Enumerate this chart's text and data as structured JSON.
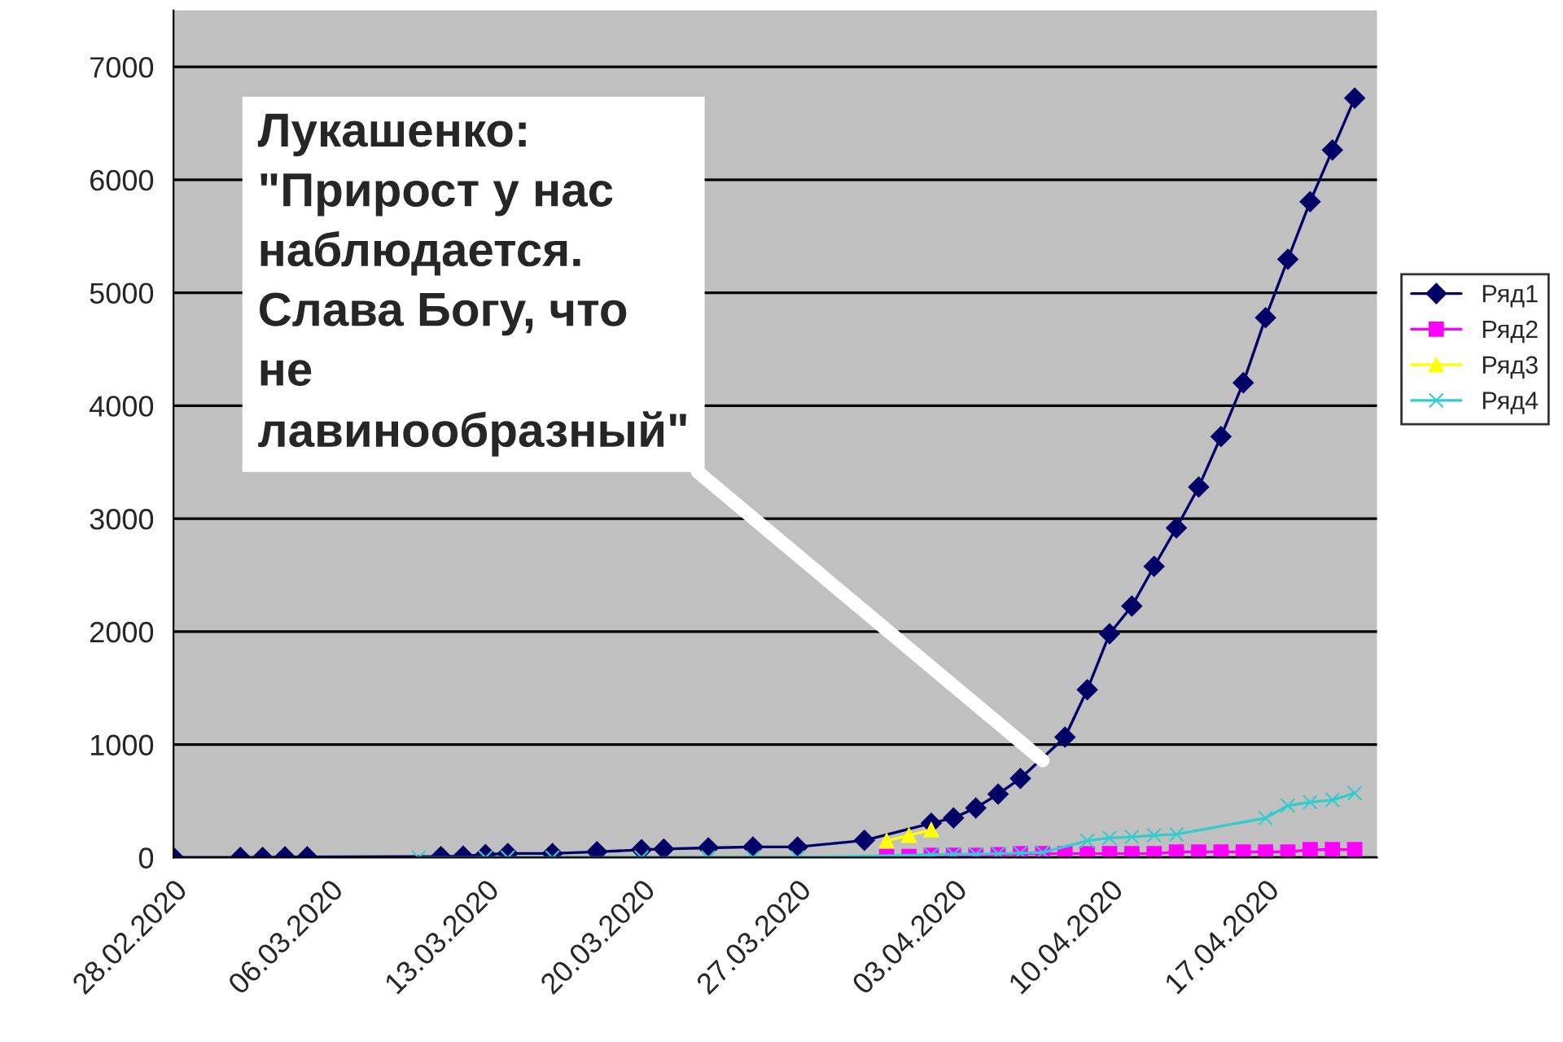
{
  "chart_data": {
    "type": "line",
    "annotations": [
      {
        "text": "Лукашенко:\n\"Прирост у нас\nнаблюдается.\nСлава Богу, что\nне\nлавинообразный\"",
        "x": "2020-04-07",
        "y": 860
      }
    ],
    "series": [
      {
        "name": "Ряд1",
        "color": "#000066",
        "marker": "diamond",
        "x": [
          "2020-02-28",
          "2020-03-02",
          "2020-03-03",
          "2020-03-04",
          "2020-03-05",
          "2020-03-11",
          "2020-03-12",
          "2020-03-13",
          "2020-03-14",
          "2020-03-16",
          "2020-03-18",
          "2020-03-20",
          "2020-03-21",
          "2020-03-23",
          "2020-03-25",
          "2020-03-27",
          "2020-03-30",
          "2020-04-02",
          "2020-04-03",
          "2020-04-04",
          "2020-04-05",
          "2020-04-06",
          "2020-04-08",
          "2020-04-09",
          "2020-04-10",
          "2020-04-11",
          "2020-04-12",
          "2020-04-13",
          "2020-04-14",
          "2020-04-15",
          "2020-04-16",
          "2020-04-17",
          "2020-04-18",
          "2020-04-19",
          "2020-04-20",
          "2020-04-21"
        ],
        "values": [
          1,
          1,
          1,
          6,
          6,
          9,
          12,
          27,
          36,
          36,
          51,
          69,
          76,
          86,
          94,
          94,
          152,
          304,
          351,
          440,
          562,
          700,
          1066,
          1486,
          1981,
          2226,
          2578,
          2919,
          3281,
          3728,
          4204,
          4779,
          5297,
          5807,
          6264,
          6723
        ]
      },
      {
        "name": "Ряд2",
        "color": "#ff00ff",
        "marker": "square",
        "x": [
          "2020-03-31",
          "2020-04-01",
          "2020-04-02",
          "2020-04-03",
          "2020-04-04",
          "2020-04-05",
          "2020-04-06",
          "2020-04-07",
          "2020-04-08",
          "2020-04-09",
          "2020-04-10",
          "2020-04-11",
          "2020-04-12",
          "2020-04-13",
          "2020-04-14",
          "2020-04-15",
          "2020-04-16",
          "2020-04-17",
          "2020-04-18",
          "2020-04-19",
          "2020-04-20",
          "2020-04-21"
        ],
        "values": [
          10,
          10,
          20,
          20,
          20,
          25,
          35,
          35,
          35,
          35,
          35,
          35,
          35,
          50,
          50,
          50,
          50,
          50,
          50,
          70,
          70,
          70
        ]
      },
      {
        "name": "Ряд3",
        "color": "#ffff00",
        "marker": "triangle",
        "x": [
          "2020-03-31",
          "2020-04-01",
          "2020-04-02"
        ],
        "values": [
          148,
          196,
          245
        ]
      },
      {
        "name": "Ряд4",
        "color": "#33cccc",
        "marker": "cross",
        "x": [
          "2020-03-10",
          "2020-03-13",
          "2020-03-14",
          "2020-03-16",
          "2020-03-20",
          "2020-03-23",
          "2020-03-25",
          "2020-03-27",
          "2020-04-02",
          "2020-04-03",
          "2020-04-04",
          "2020-04-05",
          "2020-04-06",
          "2020-04-07",
          "2020-04-09",
          "2020-04-10",
          "2020-04-11",
          "2020-04-12",
          "2020-04-13",
          "2020-04-17",
          "2020-04-18",
          "2020-04-19",
          "2020-04-20",
          "2020-04-21"
        ],
        "values": [
          0,
          0,
          0,
          0,
          0,
          0,
          0,
          0,
          25,
          30,
          30,
          35,
          40,
          45,
          148,
          173,
          183,
          197,
          206,
          350,
          460,
          490,
          510,
          570
        ]
      }
    ],
    "xlim": [
      "2020-02-28",
      "2020-04-22"
    ],
    "xticks": [
      {
        "value": "2020-02-28",
        "label": "28.02.2020"
      },
      {
        "value": "2020-03-06",
        "label": "06.03.2020"
      },
      {
        "value": "2020-03-13",
        "label": "13.03.2020"
      },
      {
        "value": "2020-03-20",
        "label": "20.03.2020"
      },
      {
        "value": "2020-03-27",
        "label": "27.03.2020"
      },
      {
        "value": "2020-04-03",
        "label": "03.04.2020"
      },
      {
        "value": "2020-04-10",
        "label": "10.04.2020"
      },
      {
        "value": "2020-04-17",
        "label": "17.04.2020"
      }
    ],
    "ylim": [
      0,
      7500
    ],
    "yticks": [
      0,
      1000,
      2000,
      3000,
      4000,
      5000,
      6000,
      7000
    ],
    "grid": "y",
    "legend": "right",
    "line_style": "solid"
  }
}
